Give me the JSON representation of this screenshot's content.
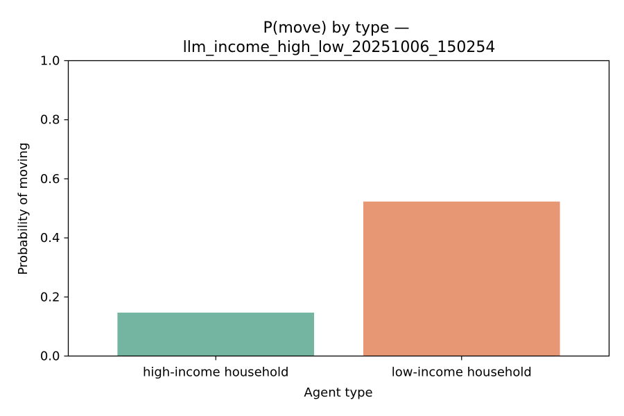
{
  "chart_data": {
    "type": "bar",
    "title": "P(move) by type —",
    "subtitle": "llm_income_high_low_20251006_150254",
    "xlabel": "Agent type",
    "ylabel": "Probability of moving",
    "categories": [
      "high-income household",
      "low-income household"
    ],
    "values": [
      0.147,
      0.523
    ],
    "colors": [
      "#73b5a1",
      "#e89774"
    ],
    "ylim": [
      0,
      1.0
    ],
    "yticks": [
      "0.0",
      "0.2",
      "0.4",
      "0.6",
      "0.8",
      "1.0"
    ],
    "grid": false,
    "legend": "none"
  }
}
